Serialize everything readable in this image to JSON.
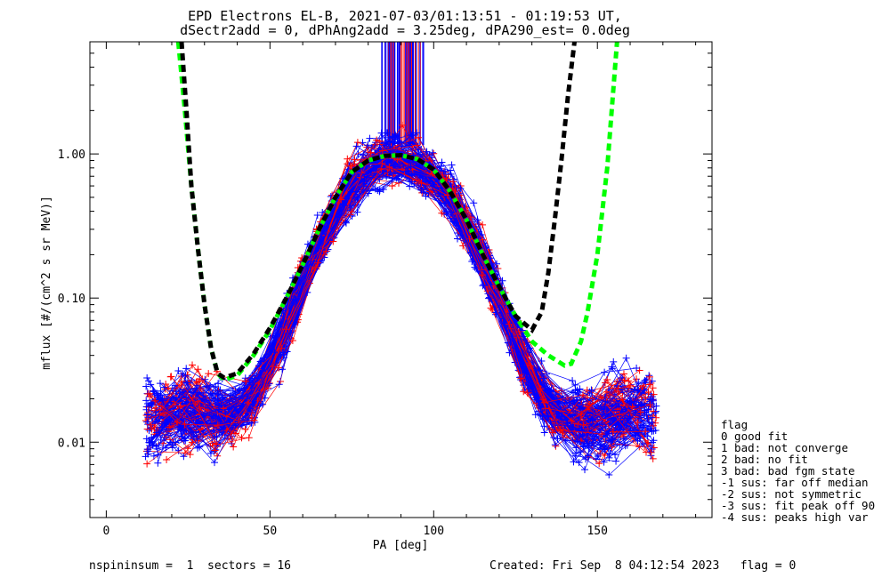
{
  "chart_data": {
    "type": "scatter",
    "title": "EPD Electrons EL-B, 2021-07-03/01:13:51 - 01:19:53 UT,",
    "subtitle": "dSectr2add = 0, dPhAng2add = 3.25deg, dPA290_est=   0.0deg",
    "xlabel": "PA [deg]",
    "ylabel": "mflux [#/(cm^2 s sr MeV)]",
    "xlim": [
      -5,
      185
    ],
    "ylim": [
      0.003,
      6
    ],
    "yscale": "log",
    "xticks": [
      "0",
      "50",
      "100",
      "150"
    ],
    "xtick_values": [
      0,
      50,
      100,
      150
    ],
    "yticks": [
      "0.01",
      "0.10",
      "1.00"
    ],
    "ytick_values": [
      0.01,
      0.1,
      1.0
    ],
    "series": [
      {
        "color": "#00ff00",
        "style": "dashed",
        "x": [
          22,
          24,
          26,
          28,
          30,
          32,
          34,
          36,
          40,
          45,
          50,
          55,
          60,
          65,
          70,
          75,
          80,
          85,
          90,
          95,
          100,
          105,
          110,
          115,
          120,
          125,
          130,
          135,
          140,
          142,
          145,
          147,
          150,
          153,
          156
        ],
        "y": [
          6.0,
          2.0,
          0.6,
          0.22,
          0.09,
          0.045,
          0.03,
          0.027,
          0.029,
          0.04,
          0.06,
          0.1,
          0.17,
          0.3,
          0.5,
          0.75,
          0.9,
          0.97,
          0.98,
          0.92,
          0.78,
          0.55,
          0.35,
          0.2,
          0.12,
          0.075,
          0.05,
          0.04,
          0.034,
          0.035,
          0.05,
          0.08,
          0.2,
          0.8,
          6.0
        ]
      },
      {
        "color": "#000000",
        "style": "dashed",
        "x": [
          23,
          24.5,
          26,
          28,
          30,
          32,
          34,
          36,
          40,
          45,
          50,
          55,
          60,
          65,
          70,
          75,
          80,
          85,
          90,
          95,
          100,
          105,
          110,
          115,
          120,
          125,
          130,
          133,
          135,
          137,
          139,
          141,
          143
        ],
        "y": [
          6.0,
          2.0,
          0.6,
          0.22,
          0.09,
          0.045,
          0.03,
          0.028,
          0.03,
          0.041,
          0.062,
          0.1,
          0.17,
          0.3,
          0.5,
          0.75,
          0.9,
          0.97,
          0.98,
          0.92,
          0.78,
          0.55,
          0.35,
          0.2,
          0.12,
          0.075,
          0.06,
          0.08,
          0.15,
          0.35,
          0.9,
          2.5,
          6.0
        ]
      }
    ],
    "scatter_series": [
      {
        "color": "#0000ff",
        "marker": "+"
      },
      {
        "color": "#ff0000",
        "marker": "+"
      }
    ],
    "legend": {
      "placement": "right",
      "title": "flag",
      "entries": [
        "0 good fit",
        "1 bad: not converge",
        "2 bad: no fit",
        "3 bad: bad fgm state",
        "-1 sus: far off median",
        "-2 sus: not symmetric",
        "-3 sus: fit peak off 90",
        "-4 sus: peaks high var"
      ]
    }
  },
  "footer": {
    "left": "nspininsum =  1  sectors = 16",
    "right": "Created: Fri Sep  8 04:12:54 2023   flag = 0"
  }
}
